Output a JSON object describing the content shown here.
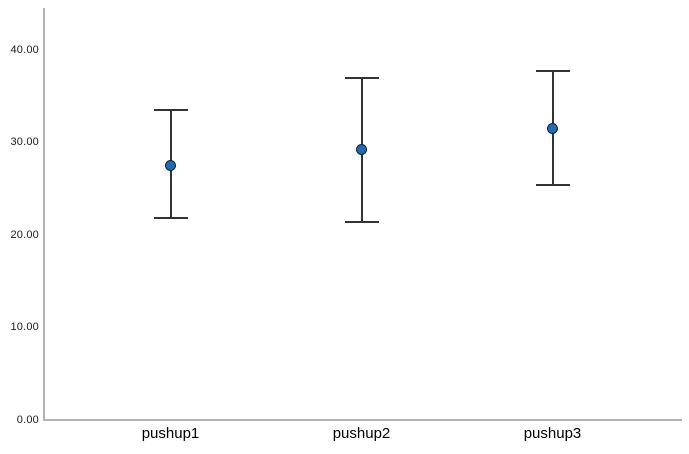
{
  "chart_data": {
    "type": "scatter",
    "subtype": "error-bar",
    "title": "",
    "xlabel": "",
    "ylabel": "",
    "categories": [
      "pushup1",
      "pushup2",
      "pushup3"
    ],
    "series": [
      {
        "name": "mean",
        "values": [
          27.5,
          29.2,
          31.5
        ]
      }
    ],
    "error_low": [
      21.8,
      21.3,
      25.4
    ],
    "error_high": [
      33.5,
      36.9,
      37.7
    ],
    "ylim": [
      0,
      40
    ],
    "yticks": [
      0,
      10,
      20,
      30,
      40
    ],
    "ytick_decimals": 2,
    "grid": false,
    "legend": false,
    "colors": {
      "point_fill": "#1f6cb4",
      "point_border": "#0d2236",
      "error_bar": "#333333",
      "axis_line": "#b3b3b3",
      "tick_text": "#1a1a1a",
      "category_text": "#000000",
      "background": "#ffffff"
    }
  }
}
